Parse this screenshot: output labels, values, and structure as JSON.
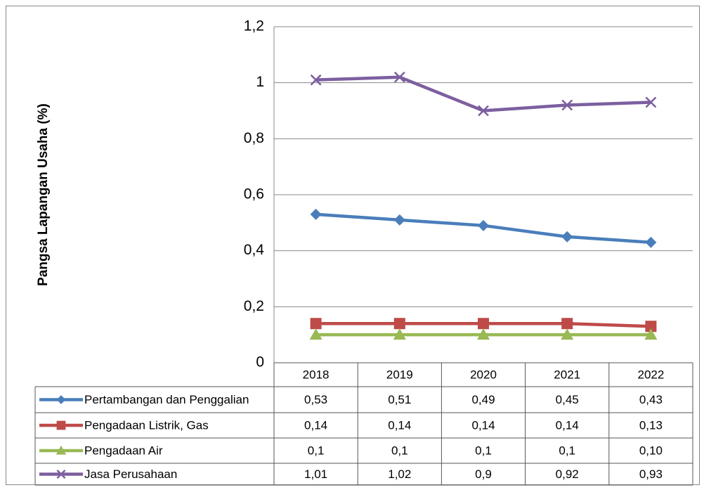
{
  "chart_data": {
    "type": "line",
    "y_label": "Pangsa Lapangan Usaha (%)",
    "categories": [
      "2018",
      "2019",
      "2020",
      "2021",
      "2022"
    ],
    "series": [
      {
        "name": "Pertambangan dan Penggalian",
        "color": "#4a7ebb",
        "marker": "diamond",
        "values": [
          0.53,
          0.51,
          0.49,
          0.45,
          0.43
        ],
        "value_labels": [
          "0,53",
          "0,51",
          "0,49",
          "0,45",
          "0,43"
        ]
      },
      {
        "name": "Pengadaan Listrik, Gas",
        "color": "#be4b48",
        "marker": "square",
        "values": [
          0.14,
          0.14,
          0.14,
          0.14,
          0.13
        ],
        "value_labels": [
          "0,14",
          "0,14",
          "0,14",
          "0,14",
          "0,13"
        ]
      },
      {
        "name": "Pengadaan Air",
        "color": "#98b954",
        "marker": "triangle",
        "values": [
          0.1,
          0.1,
          0.1,
          0.1,
          0.1
        ],
        "value_labels": [
          "0,1",
          "0,1",
          "0,1",
          "0,1",
          "0,10"
        ]
      },
      {
        "name": "Jasa Perusahaan",
        "color": "#7d5fa0",
        "marker": "x",
        "values": [
          1.01,
          1.02,
          0.9,
          0.92,
          0.93
        ],
        "value_labels": [
          "1,01",
          "1,02",
          "0,9",
          "0,92",
          "0,93"
        ]
      }
    ],
    "ylim": [
      0,
      1.2
    ],
    "yticks": [
      0,
      {
        "value": 0.2,
        "label": "0,2"
      },
      {
        "value": 0.4,
        "label": "0,4"
      },
      {
        "value": 0.6,
        "label": "0,6"
      },
      {
        "value": 0.8,
        "label": "0,8"
      },
      1,
      {
        "value": 1.2,
        "label": "1,2"
      }
    ],
    "grid": true
  }
}
